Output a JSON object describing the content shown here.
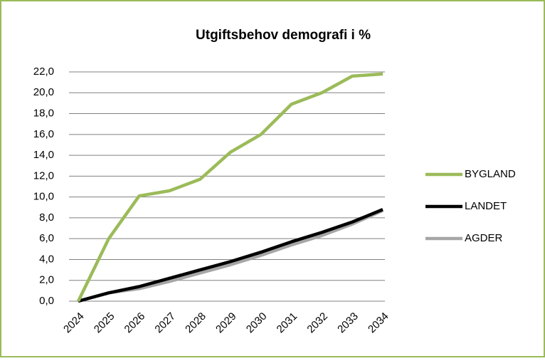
{
  "chart_data": {
    "type": "line",
    "title": "Utgiftsbehov demografi i %",
    "categories": [
      "2024",
      "2025",
      "2026",
      "2027",
      "2028",
      "2029",
      "2030",
      "2031",
      "2032",
      "2033",
      "2034"
    ],
    "series": [
      {
        "name": "BYGLAND",
        "color": "#9bbb59",
        "values": [
          0,
          6.0,
          10.1,
          10.6,
          11.7,
          14.3,
          16.0,
          18.9,
          20.0,
          21.6,
          21.8
        ]
      },
      {
        "name": "LANDET",
        "color": "#000000",
        "values": [
          0,
          0.8,
          1.4,
          2.2,
          3.0,
          3.8,
          4.7,
          5.7,
          6.6,
          7.6,
          8.8
        ]
      },
      {
        "name": "AGDER",
        "color": "#a6a6a6",
        "values": [
          0,
          0.8,
          1.2,
          1.9,
          2.7,
          3.5,
          4.4,
          5.4,
          6.3,
          7.4,
          8.7
        ]
      }
    ],
    "ylim": [
      0,
      22
    ],
    "yticks": [
      {
        "value": 0,
        "label": "0,0"
      },
      {
        "value": 2,
        "label": "2,0"
      },
      {
        "value": 4,
        "label": "4,0"
      },
      {
        "value": 6,
        "label": "6,0"
      },
      {
        "value": 8,
        "label": "8,0"
      },
      {
        "value": 10,
        "label": "10,0"
      },
      {
        "value": 12,
        "label": "12,0"
      },
      {
        "value": 14,
        "label": "14,0"
      },
      {
        "value": 16,
        "label": "16,0"
      },
      {
        "value": 18,
        "label": "18,0"
      },
      {
        "value": 20,
        "label": "20,0"
      },
      {
        "value": 22,
        "label": "22,0"
      }
    ],
    "grid": true,
    "legend": "right"
  }
}
